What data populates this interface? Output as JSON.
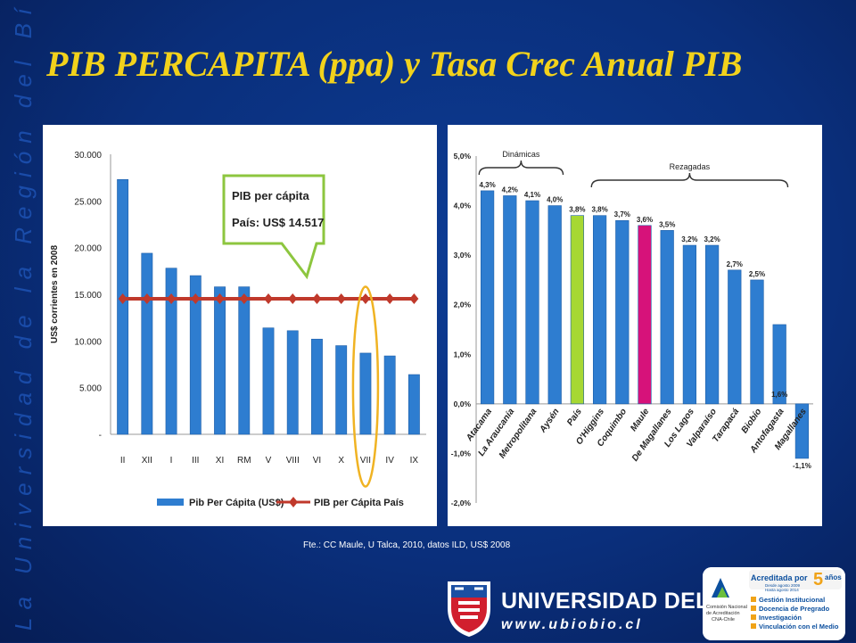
{
  "side_text": "La Universidad de la Región del Bío-Bío",
  "title": "PIB  PERCAPITA  (ppa) y Tasa Crec Anual PIB",
  "source": "Fte.:  CC Maule,  U Talca, 2010, datos  ILD, US$ 2008",
  "university": {
    "name": "UNIVERSIDAD DEL BÍO-BÍO",
    "web": "www.ubiobio.cl"
  },
  "accreditation": {
    "headline": "Acreditada por",
    "years_number": "5",
    "years_word": "años",
    "date_from": "Desde agosto 2009",
    "date_to": "Hasta agosto 2014",
    "agency_line1": "Comisión Nacional",
    "agency_line2": "de Acreditación",
    "agency_line3": "CNA-Chile",
    "agency_abbr": "N",
    "areas": [
      "Gestión Institucional",
      "Docencia de Pregrado",
      "Investigación",
      "Vinculación con el Medio"
    ]
  },
  "colors": {
    "title": "#f2d21c",
    "bar_blue": "#2e7dd0",
    "line_red": "#c0392b",
    "callout_green": "#8dc63f",
    "highlight_oval": "#f0b323",
    "pais_bar": "#a6d833",
    "maule_bar": "#d6127a"
  },
  "chart_data": [
    {
      "type": "bar",
      "title": "",
      "xlabel": "",
      "ylabel": "US$ corrientes en 2008",
      "categories": [
        "II",
        "XII",
        "I",
        "III",
        "XI",
        "RM",
        "V",
        "VIII",
        "VI",
        "X",
        "VII",
        "IV",
        "IX"
      ],
      "ylim": [
        0,
        30000
      ],
      "yticks": [
        "-",
        "5.000",
        "10.000",
        "15.000",
        "20.000",
        "25.000",
        "30.000"
      ],
      "series": [
        {
          "name": "Pib Per Cápita (US$)",
          "values": [
            27300,
            19400,
            17800,
            17000,
            15800,
            15800,
            11400,
            11100,
            10200,
            9500,
            8700,
            8400,
            6400
          ]
        },
        {
          "name": "PIB per Cápita País",
          "values": [
            14517,
            14517,
            14517,
            14517,
            14517,
            14517,
            14517,
            14517,
            14517,
            14517,
            14517,
            14517,
            14517
          ]
        }
      ],
      "annotation": {
        "line1": "PIB per cápita",
        "line2": "País: US$ 14.517"
      },
      "highlight_category": "VII",
      "legend": "bottom"
    },
    {
      "type": "bar",
      "title": "",
      "xlabel": "",
      "ylabel": "",
      "categories": [
        "Atacama",
        "La Araucanía",
        "Metropolitana",
        "Aysén",
        "País",
        "O'Higgins",
        "Coquimbo",
        "Maule",
        "De Magallanes",
        "Los Lagos",
        "Valparaíso",
        "Tarapacá",
        "Biobío",
        "Antofagasta",
        "Magallanes"
      ],
      "values": [
        4.3,
        4.2,
        4.1,
        4.0,
        3.8,
        3.8,
        3.7,
        3.6,
        3.5,
        3.2,
        3.2,
        2.7,
        2.5,
        1.6,
        -1.1
      ],
      "value_labels": [
        "4,3%",
        "4,2%",
        "4,1%",
        "4,0%",
        "3,8%",
        "3,8%",
        "3,7%",
        "3,6%",
        "3,5%",
        "3,2%",
        "3,2%",
        "2,7%",
        "2,5%",
        "1,6%",
        "-1,1%"
      ],
      "ylim": [
        -2,
        5
      ],
      "yticks": [
        "-2,0%",
        "-1,0%",
        "0,0%",
        "1,0%",
        "2,0%",
        "3,0%",
        "4,0%",
        "5,0%"
      ],
      "groups": [
        {
          "label": "Dinámicas",
          "from": 0,
          "to": 3
        },
        {
          "label": "Rezagadas",
          "from": 5,
          "to": 13
        }
      ],
      "highlight": {
        "País": "#a6d833",
        "Maule": "#d6127a"
      }
    }
  ]
}
